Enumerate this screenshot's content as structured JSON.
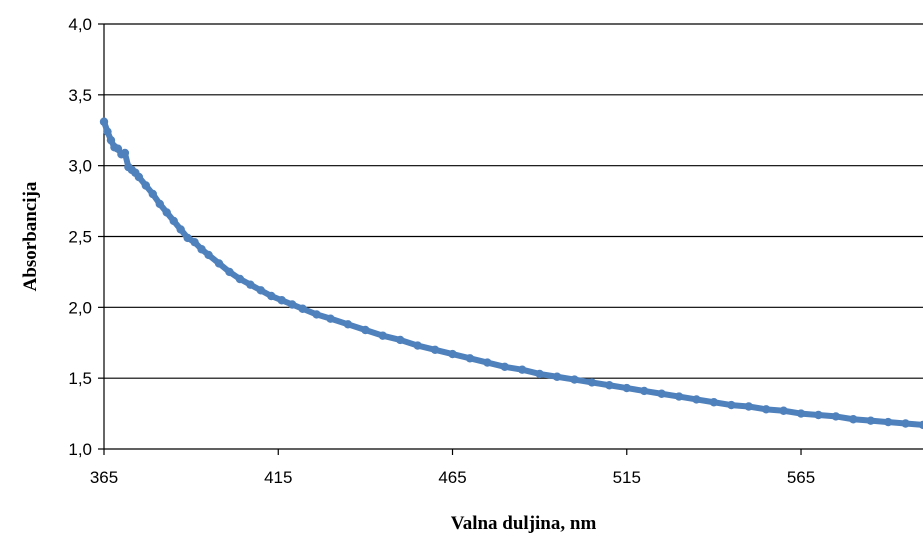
{
  "chart_data": {
    "type": "scatter",
    "xlabel": "Valna duljina, nm",
    "ylabel": "Absorbancija",
    "xlim": [
      365,
      600
    ],
    "ylim": [
      1.0,
      4.0
    ],
    "x_ticks": [
      "365",
      "415",
      "465",
      "515",
      "565"
    ],
    "x_tick_values": [
      365,
      415,
      465,
      515,
      565
    ],
    "y_ticks": [
      "1,0",
      "1,5",
      "2,0",
      "2,5",
      "3,0",
      "3,5",
      "4,0"
    ],
    "y_tick_values": [
      1.0,
      1.5,
      2.0,
      2.5,
      3.0,
      3.5,
      4.0
    ],
    "grid": "horizontal",
    "legend": "none",
    "series": [
      {
        "color": "#4f81bd",
        "x": [
          365,
          366,
          367,
          368,
          369,
          370,
          371,
          372,
          373,
          374,
          375,
          377,
          379,
          381,
          383,
          385,
          387,
          389,
          391,
          393,
          395,
          398,
          401,
          404,
          407,
          410,
          413,
          416,
          419,
          422,
          426,
          430,
          435,
          440,
          445,
          450,
          455,
          460,
          465,
          470,
          475,
          480,
          485,
          490,
          495,
          500,
          505,
          510,
          515,
          520,
          525,
          530,
          535,
          540,
          545,
          550,
          555,
          560,
          565,
          570,
          575,
          580,
          585,
          590,
          595,
          600
        ],
        "y": [
          3.31,
          3.24,
          3.18,
          3.13,
          3.12,
          3.08,
          3.09,
          2.99,
          2.97,
          2.95,
          2.92,
          2.86,
          2.8,
          2.73,
          2.67,
          2.61,
          2.55,
          2.49,
          2.46,
          2.41,
          2.37,
          2.31,
          2.25,
          2.2,
          2.16,
          2.12,
          2.08,
          2.05,
          2.02,
          1.99,
          1.95,
          1.92,
          1.88,
          1.84,
          1.8,
          1.77,
          1.73,
          1.7,
          1.67,
          1.64,
          1.61,
          1.58,
          1.56,
          1.53,
          1.51,
          1.49,
          1.47,
          1.45,
          1.43,
          1.41,
          1.39,
          1.37,
          1.35,
          1.33,
          1.31,
          1.3,
          1.28,
          1.27,
          1.25,
          1.24,
          1.23,
          1.21,
          1.2,
          1.19,
          1.18,
          1.17
        ]
      }
    ]
  }
}
